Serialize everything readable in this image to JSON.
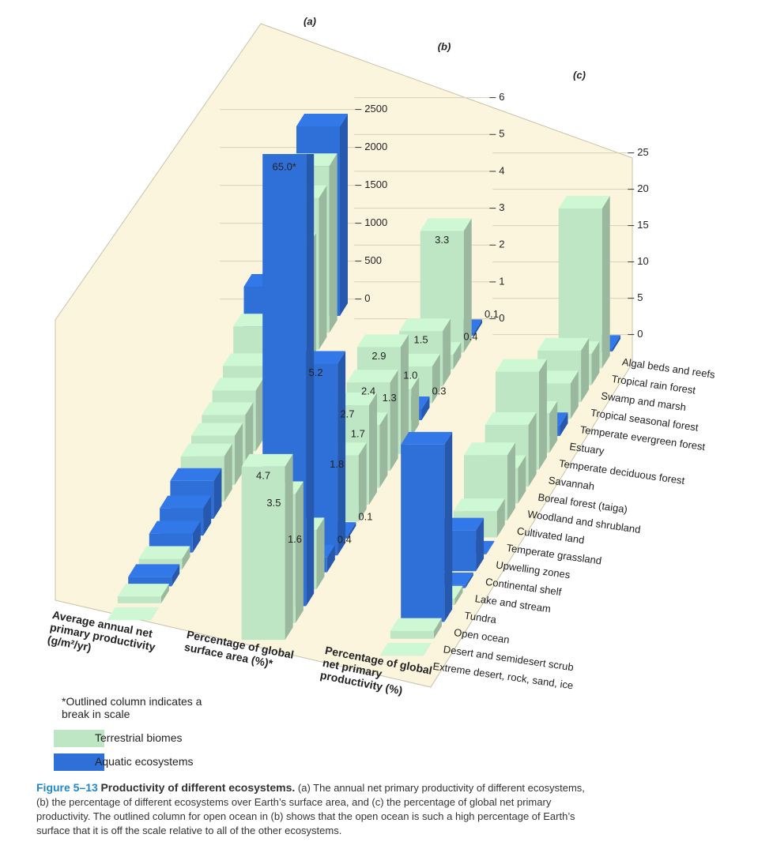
{
  "categories": [
    "Algal beds and reefs",
    "Tropical rain forest",
    "Swamp and marsh",
    "Tropical seasonal forest",
    "Temperate evergreen forest",
    "Estuary",
    "Temperate deciduous forest",
    "Savannah",
    "Boreal forest (taiga)",
    "Woodland and shrubland",
    "Cultivated land",
    "Temperate grassland",
    "Upwelling zones",
    "Continental shelf",
    "Lake and stream",
    "Tundra",
    "Open ocean",
    "Desert and semidesert scrub",
    "Extreme desert, rock, sand, ice"
  ],
  "bar_colors": [
    "#2f6fd8",
    "#bfe6c4",
    "#bfe6c4",
    "#bfe6c4",
    "#bfe6c4",
    "#2f6fd8",
    "#bfe6c4",
    "#bfe6c4",
    "#bfe6c4",
    "#bfe6c4",
    "#bfe6c4",
    "#bfe6c4",
    "#2f6fd8",
    "#2f6fd8",
    "#2f6fd8",
    "#bfe6c4",
    "#2f6fd8",
    "#bfe6c4",
    "#bfe6c4"
  ],
  "chart_data": [
    {
      "type": "bar",
      "title": "(a)",
      "ylabel": "Average annual net primary productivity (g/m²/yr)",
      "values": [
        2500,
        2200,
        2000,
        1600,
        1300,
        1500,
        1200,
        900,
        800,
        700,
        650,
        600,
        500,
        360,
        250,
        140,
        125,
        90,
        3
      ],
      "ylim": [
        0,
        2500
      ],
      "yticks": [
        0,
        500,
        1000,
        1500,
        2000,
        2500
      ],
      "grid": true
    },
    {
      "type": "bar",
      "title": "(b)",
      "ylabel": "Percentage of global surface area (%)*",
      "values": [
        0.1,
        3.3,
        0.4,
        1.5,
        1.0,
        0.3,
        1.3,
        2.9,
        2.4,
        1.7,
        2.7,
        1.8,
        0.1,
        5.2,
        0.4,
        1.6,
        65.0,
        3.5,
        4.7
      ],
      "value_labels": [
        "0.1",
        "3.3",
        "0.4",
        "1.5",
        "1.0",
        "0.3",
        "1.3",
        "2.9",
        "2.4",
        "1.7",
        "2.7",
        "1.8",
        "0.1",
        "5.2",
        "0.4",
        "1.6",
        "65.0*",
        "3.5",
        "4.7"
      ],
      "ylim": [
        0,
        6
      ],
      "yticks": [
        0,
        1,
        2,
        3,
        4,
        5,
        6
      ],
      "grid": true
    },
    {
      "type": "bar",
      "title": "(c)",
      "ylabel": "Percentage of global net primary productivity (%)",
      "values": [
        0.5,
        22,
        4.3,
        7.1,
        4.9,
        1.5,
        5.4,
        13.5,
        8.5,
        4.9,
        9,
        3.6,
        0.1,
        5.6,
        0.4,
        0.9,
        24.4,
        1.1,
        0.04
      ],
      "ylim": [
        0,
        25
      ],
      "yticks": [
        0,
        5,
        10,
        15,
        20,
        25
      ],
      "grid": true
    }
  ],
  "note": "*Outlined column indicates a break in scale",
  "legend": [
    {
      "name": "Terrestrial biomes",
      "color": "#bfe6c4"
    },
    {
      "name": "Aquatic ecosystems",
      "color": "#2f6fd8"
    }
  ],
  "caption": {
    "label": "Figure 5–13",
    "title": "Productivity of different ecosystems.",
    "text": "(a) The annual net primary productivity of different ecosystems, (b) the percentage of different ecosystems over Earth’s surface area, and (c) the percentage of global net primary productivity. The outlined column for open ocean in (b) shows that the open ocean is such a high percentage of Earth’s surface that it is off the scale relative to all of the other ecosystems."
  }
}
